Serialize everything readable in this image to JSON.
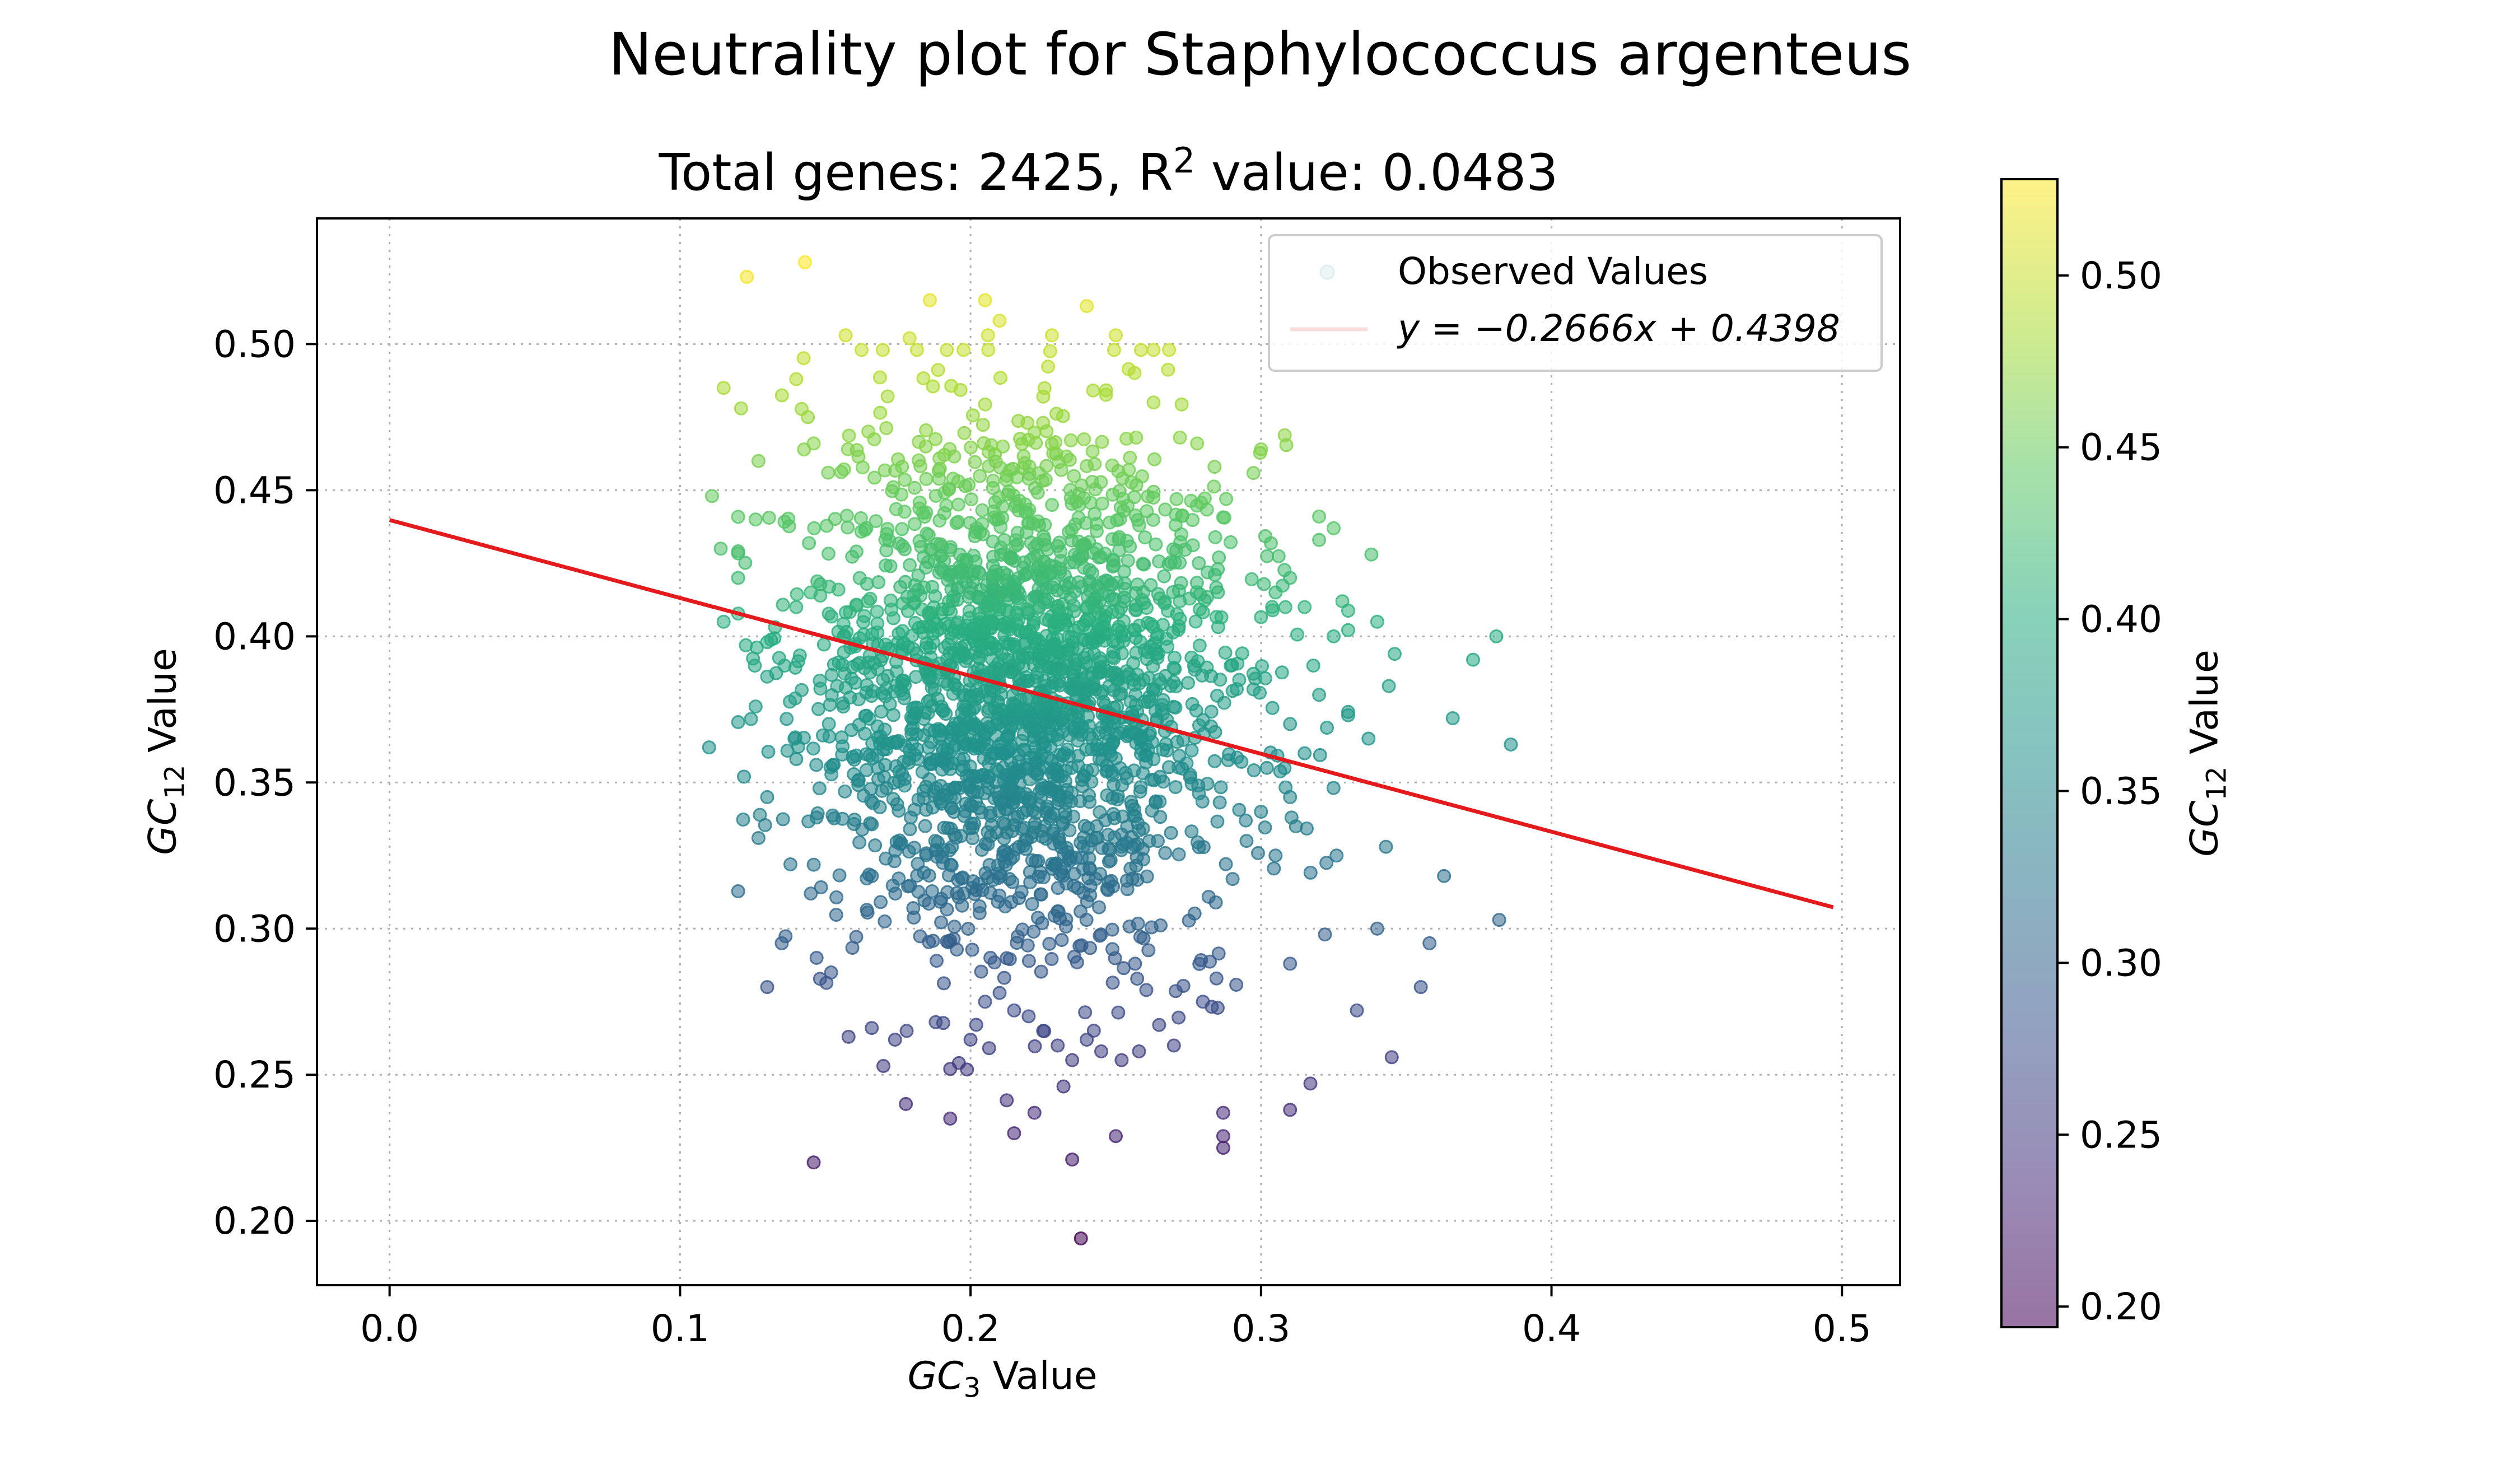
{
  "figure": {
    "suptitle": "Neutrality plot for Staphylococcus argenteus",
    "subtitle_prefix": "Total genes: 2425, R",
    "subtitle_sup": "2",
    "subtitle_suffix": " value: 0.0483"
  },
  "chart_data": {
    "type": "scatter",
    "xlabel_main": "GC",
    "xlabel_sub": "3",
    "xlabel_rest": " Value",
    "ylabel_main": "GC",
    "ylabel_sub": "12",
    "ylabel_rest": " Value",
    "xlim": [
      -0.025,
      0.52
    ],
    "ylim": [
      0.178,
      0.543
    ],
    "xticks": [
      "0.0",
      "0.1",
      "0.2",
      "0.3",
      "0.4",
      "0.5"
    ],
    "xtick_values": [
      0.0,
      0.1,
      0.2,
      0.3,
      0.4,
      0.5
    ],
    "yticks": [
      "0.20",
      "0.25",
      "0.30",
      "0.35",
      "0.40",
      "0.45",
      "0.50"
    ],
    "ytick_values": [
      0.2,
      0.25,
      0.3,
      0.35,
      0.4,
      0.45,
      0.5
    ],
    "grid": true,
    "colormap": "viridis",
    "colorbar": {
      "label_main": "GC",
      "label_sub": "12",
      "label_rest": " Value",
      "range": [
        0.194,
        0.528
      ],
      "ticks": [
        "0.20",
        "0.25",
        "0.30",
        "0.35",
        "0.40",
        "0.45",
        "0.50"
      ],
      "tick_values": [
        0.2,
        0.25,
        0.3,
        0.35,
        0.4,
        0.45,
        0.5
      ]
    },
    "legend": {
      "placement": "upper right",
      "scatter_label": "Observed Values",
      "line_label": "y = −0.2666x + 0.4398"
    },
    "fit_line": {
      "slope": -0.2666,
      "intercept": 0.4398,
      "x_range": [
        0.0,
        0.497
      ],
      "color": "#e41a1c"
    },
    "series": [
      {
        "name": "Observed Values",
        "total_genes": 2425,
        "points": [
          [
            0.123,
            0.523
          ],
          [
            0.143,
            0.528
          ],
          [
            0.205,
            0.515
          ],
          [
            0.186,
            0.515
          ],
          [
            0.24,
            0.513
          ],
          [
            0.21,
            0.508
          ],
          [
            0.206,
            0.503
          ],
          [
            0.228,
            0.503
          ],
          [
            0.157,
            0.503
          ],
          [
            0.179,
            0.502
          ],
          [
            0.25,
            0.503
          ],
          [
            0.144,
            0.475
          ],
          [
            0.115,
            0.485
          ],
          [
            0.14,
            0.488
          ],
          [
            0.121,
            0.478
          ],
          [
            0.146,
            0.466
          ],
          [
            0.151,
            0.456
          ],
          [
            0.127,
            0.46
          ],
          [
            0.278,
            0.466
          ],
          [
            0.3,
            0.464
          ],
          [
            0.284,
            0.458
          ],
          [
            0.288,
            0.447
          ],
          [
            0.263,
            0.48
          ],
          [
            0.257,
            0.468
          ],
          [
            0.111,
            0.448
          ],
          [
            0.126,
            0.44
          ],
          [
            0.114,
            0.43
          ],
          [
            0.12,
            0.42
          ],
          [
            0.115,
            0.405
          ],
          [
            0.13,
            0.398
          ],
          [
            0.14,
            0.41
          ],
          [
            0.145,
            0.415
          ],
          [
            0.136,
            0.39
          ],
          [
            0.11,
            0.362
          ],
          [
            0.122,
            0.352
          ],
          [
            0.13,
            0.345
          ],
          [
            0.14,
            0.358
          ],
          [
            0.148,
            0.348
          ],
          [
            0.126,
            0.376
          ],
          [
            0.127,
            0.331
          ],
          [
            0.138,
            0.322
          ],
          [
            0.145,
            0.312
          ],
          [
            0.13,
            0.28
          ],
          [
            0.135,
            0.295
          ],
          [
            0.147,
            0.29
          ],
          [
            0.152,
            0.285
          ],
          [
            0.146,
            0.22
          ],
          [
            0.158,
            0.263
          ],
          [
            0.166,
            0.266
          ],
          [
            0.17,
            0.253
          ],
          [
            0.174,
            0.262
          ],
          [
            0.178,
            0.265
          ],
          [
            0.188,
            0.268
          ],
          [
            0.193,
            0.252
          ],
          [
            0.196,
            0.254
          ],
          [
            0.2,
            0.262
          ],
          [
            0.205,
            0.275
          ],
          [
            0.21,
            0.278
          ],
          [
            0.215,
            0.272
          ],
          [
            0.22,
            0.27
          ],
          [
            0.225,
            0.265
          ],
          [
            0.23,
            0.26
          ],
          [
            0.235,
            0.255
          ],
          [
            0.24,
            0.262
          ],
          [
            0.245,
            0.258
          ],
          [
            0.252,
            0.255
          ],
          [
            0.258,
            0.258
          ],
          [
            0.27,
            0.26
          ],
          [
            0.28,
            0.275
          ],
          [
            0.193,
            0.235
          ],
          [
            0.215,
            0.23
          ],
          [
            0.222,
            0.237
          ],
          [
            0.232,
            0.246
          ],
          [
            0.25,
            0.229
          ],
          [
            0.235,
            0.221
          ],
          [
            0.287,
            0.229
          ],
          [
            0.287,
            0.237
          ],
          [
            0.287,
            0.225
          ],
          [
            0.31,
            0.238
          ],
          [
            0.317,
            0.247
          ],
          [
            0.238,
            0.194
          ],
          [
            0.333,
            0.272
          ],
          [
            0.345,
            0.256
          ],
          [
            0.355,
            0.28
          ],
          [
            0.358,
            0.295
          ],
          [
            0.34,
            0.3
          ],
          [
            0.382,
            0.303
          ],
          [
            0.363,
            0.318
          ],
          [
            0.343,
            0.328
          ],
          [
            0.326,
            0.325
          ],
          [
            0.31,
            0.288
          ],
          [
            0.322,
            0.298
          ],
          [
            0.386,
            0.363
          ],
          [
            0.366,
            0.372
          ],
          [
            0.373,
            0.392
          ],
          [
            0.381,
            0.4
          ],
          [
            0.346,
            0.394
          ],
          [
            0.34,
            0.405
          ],
          [
            0.344,
            0.383
          ],
          [
            0.337,
            0.365
          ],
          [
            0.33,
            0.373
          ],
          [
            0.338,
            0.428
          ],
          [
            0.328,
            0.412
          ],
          [
            0.32,
            0.433
          ],
          [
            0.32,
            0.441
          ],
          [
            0.325,
            0.437
          ],
          [
            0.31,
            0.42
          ],
          [
            0.305,
            0.415
          ],
          [
            0.315,
            0.41
          ],
          [
            0.325,
            0.4
          ],
          [
            0.318,
            0.39
          ],
          [
            0.32,
            0.38
          ],
          [
            0.31,
            0.37
          ],
          [
            0.315,
            0.36
          ],
          [
            0.302,
            0.355
          ],
          [
            0.31,
            0.345
          ],
          [
            0.3,
            0.34
          ],
          [
            0.312,
            0.335
          ],
          [
            0.305,
            0.325
          ],
          [
            0.295,
            0.33
          ]
        ]
      }
    ]
  }
}
